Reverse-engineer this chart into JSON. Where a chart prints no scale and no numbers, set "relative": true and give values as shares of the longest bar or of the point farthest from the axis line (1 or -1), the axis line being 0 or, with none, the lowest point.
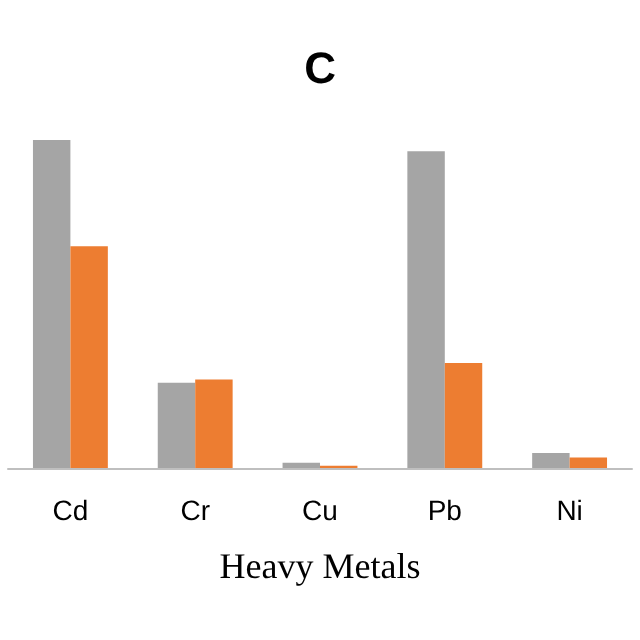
{
  "chart_data": {
    "type": "bar",
    "title": "C",
    "xlabel": "Heavy Metals",
    "relative": true,
    "categories": [
      "Cd",
      "Cr",
      "Cu",
      "Pb",
      "Ni"
    ],
    "series": [
      {
        "color": "#a5a5a5",
        "values": [
          1.0,
          0.26,
          0.016,
          0.966,
          0.046
        ]
      },
      {
        "color": "#ed7d31",
        "values": [
          0.676,
          0.27,
          0.007,
          0.32,
          0.032
        ]
      }
    ],
    "grid": false
  }
}
